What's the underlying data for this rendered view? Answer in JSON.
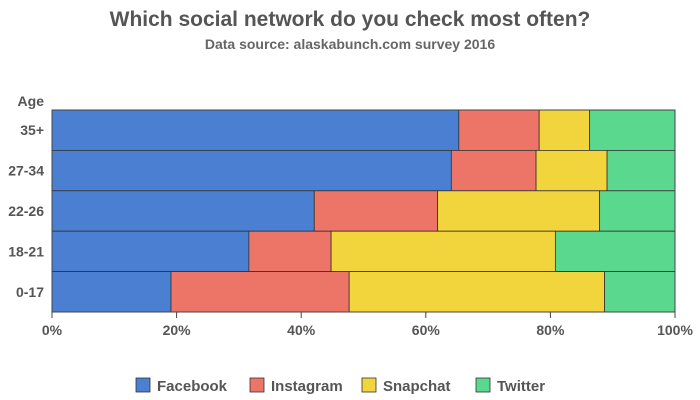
{
  "chart_data": {
    "type": "bar",
    "orientation": "horizontal",
    "stacked": "percent",
    "title": "Which social network do you check most often?",
    "subtitle": "Data source: alaskabunch.com survey 2016",
    "ylabel": "Age",
    "xlabel": "",
    "categories": [
      "35+",
      "27-34",
      "22-26",
      "18-21",
      "0-17"
    ],
    "series": [
      {
        "name": "Facebook",
        "color": "#4a7fd1",
        "values": [
          65.3,
          64.1,
          42.1,
          31.6,
          19.1
        ]
      },
      {
        "name": "Instagram",
        "color": "#ec7567",
        "values": [
          12.9,
          13.6,
          19.8,
          13.2,
          28.6
        ]
      },
      {
        "name": "Snapchat",
        "color": "#f2d43c",
        "values": [
          8.1,
          11.4,
          26.0,
          36.0,
          41.0
        ]
      },
      {
        "name": "Twitter",
        "color": "#5ad88e",
        "values": [
          13.7,
          10.9,
          12.1,
          19.2,
          11.3
        ]
      }
    ],
    "xlim": [
      0,
      100
    ],
    "xticks": [
      "0%",
      "20%",
      "40%",
      "60%",
      "80%",
      "100%"
    ],
    "grid": false,
    "legend_position": "bottom"
  }
}
